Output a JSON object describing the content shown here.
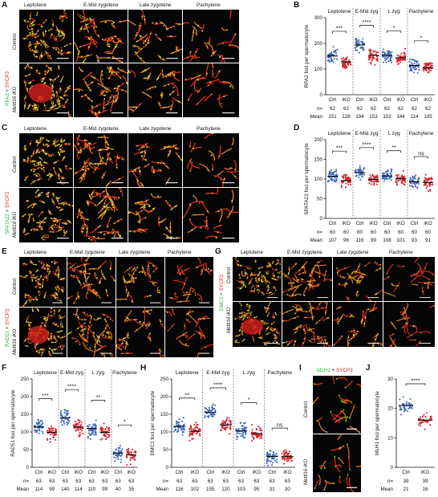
{
  "panels": {
    "A": {
      "label": "A",
      "stages": [
        "Leptotene",
        "E-Mid zygotene",
        "Late zygotene",
        "Pachytene"
      ],
      "row_labels": [
        "Control",
        "Mettl16 iKO"
      ],
      "stain": {
        "green": "RPA2",
        "plus": " + ",
        "red": "SYCP3"
      }
    },
    "C": {
      "label": "C",
      "stages": [
        "Leptotene",
        "E-Mid zygotene",
        "Late zygotene",
        "Pachytene"
      ],
      "row_labels": [
        "Control",
        "Mettl16 iKO"
      ],
      "stain": {
        "green": "SPATA22",
        "plus": " + ",
        "red": "SYCP3"
      }
    },
    "E": {
      "label": "E",
      "stages": [
        "Leptotene",
        "E-Mid zygotene",
        "Late zygotene",
        "Pachytene"
      ],
      "row_labels": [
        "Control",
        "Mettl16 iKO"
      ],
      "stain": {
        "green": "RAD51",
        "plus": " + ",
        "red": "SYCP3"
      }
    },
    "G": {
      "label": "G",
      "stages": [
        "Leptotene",
        "E-Mid zygotene",
        "Late zygotene",
        "Pachytene"
      ],
      "row_labels": [
        "Control",
        "Mettl16 iKO"
      ],
      "stain": {
        "green": "DMC1",
        "plus": " + ",
        "red": "SYCP3"
      }
    },
    "I": {
      "label": "I",
      "row_labels": [
        "Control",
        "Mettl16 iKO"
      ],
      "stain": {
        "green": "MLH1",
        "plus": " + ",
        "red": "SYCP3"
      }
    }
  },
  "chart_data": [
    {
      "id": "B",
      "label": "B",
      "type": "scatter",
      "ylabel": "RPA2 foci per spermatocyte",
      "ylim": [
        0,
        300
      ],
      "yticks": [
        0,
        100,
        200,
        300
      ],
      "stage_headers": [
        "Leptotene",
        "E-Mid zyg",
        "L zyg",
        "Pachytene"
      ],
      "x_categories": [
        "Ctrl",
        "iKO",
        "Ctrl",
        "iKO",
        "Ctrl",
        "iKO",
        "Ctrl",
        "iKO"
      ],
      "n_label": "n=",
      "n": [
        62,
        62,
        62,
        62,
        62,
        62,
        62,
        62
      ],
      "mean_label": "Mean",
      "means": [
        151,
        128,
        194,
        153,
        153,
        144,
        114,
        105
      ],
      "significance": [
        "***",
        "****",
        "*",
        "*"
      ]
    },
    {
      "id": "D",
      "label": "D",
      "type": "scatter",
      "ylabel": "SPATA22 foci per spermatocyte",
      "ylim": [
        0,
        200
      ],
      "yticks": [
        0,
        50,
        100,
        150,
        200
      ],
      "stage_headers": [
        "Leptotene",
        "E-Mid zyg",
        "L zyg",
        "Pachytene"
      ],
      "x_categories": [
        "Ctrl",
        "iKO",
        "Ctrl",
        "iKO",
        "Ctrl",
        "iKO",
        "Ctrl",
        "iKO"
      ],
      "n_label": "n=",
      "n": [
        60,
        60,
        60,
        60,
        60,
        60,
        60,
        60
      ],
      "mean_label": "Mean",
      "means": [
        107,
        96,
        116,
        99,
        108,
        101,
        93,
        91
      ],
      "significance": [
        "***",
        "****",
        "**",
        "ns"
      ]
    },
    {
      "id": "F",
      "label": "F",
      "type": "scatter",
      "ylabel": "RAD51 foci per spermatocyte",
      "ylim": [
        0,
        250
      ],
      "yticks": [
        0,
        50,
        100,
        150,
        200,
        250
      ],
      "stage_headers": [
        "Leptotene",
        "E-Mid zyg",
        "L zyg",
        "Pachytene"
      ],
      "x_categories": [
        "Ctrl",
        "iKO",
        "Ctrl",
        "iKO",
        "Ctrl",
        "iKO",
        "Ctrl",
        "iKO"
      ],
      "n_label": "n=",
      "n": [
        63,
        63,
        63,
        63,
        63,
        63,
        63,
        63
      ],
      "mean_label": "Mean",
      "means": [
        114,
        99,
        140,
        114,
        110,
        99,
        40,
        35
      ],
      "significance": [
        "***",
        "****",
        "**",
        "*"
      ]
    },
    {
      "id": "H",
      "label": "H",
      "type": "scatter",
      "ylabel": "DMC1 foci per spermatocyte",
      "ylim": [
        0,
        250
      ],
      "yticks": [
        0,
        50,
        100,
        150,
        200,
        250
      ],
      "stage_headers": [
        "Leptotene",
        "E-Mid zyg",
        "L zyg",
        "Pachytene"
      ],
      "x_categories": [
        "Ctrl",
        "iKO",
        "Ctrl",
        "iKO",
        "Ctrl",
        "iKO",
        "Ctrl",
        "iKO"
      ],
      "n_label": "n=",
      "n": [
        63,
        63,
        63,
        63,
        63,
        63,
        63,
        63
      ],
      "mean_label": "Mean",
      "means": [
        116,
        102,
        155,
        120,
        103,
        95,
        31,
        30
      ],
      "significance": [
        "**",
        "****",
        "*",
        "ns"
      ]
    },
    {
      "id": "J",
      "label": "J",
      "type": "scatter",
      "ylabel": "MLH1 foci per spermatocyte",
      "ylim": [
        0,
        30
      ],
      "yticks": [
        0,
        10,
        20,
        30
      ],
      "stage_headers": [],
      "x_categories": [
        "Ctrl",
        "iKO"
      ],
      "n_label": "n=",
      "n": [
        39,
        39
      ],
      "mean_label": "Mean",
      "means": [
        21,
        16
      ],
      "significance": [
        "****"
      ]
    }
  ],
  "colors": {
    "ctrl": "#3a64b8",
    "iko": "#d6212a",
    "green": "#2db33c",
    "red": "#e02020"
  }
}
